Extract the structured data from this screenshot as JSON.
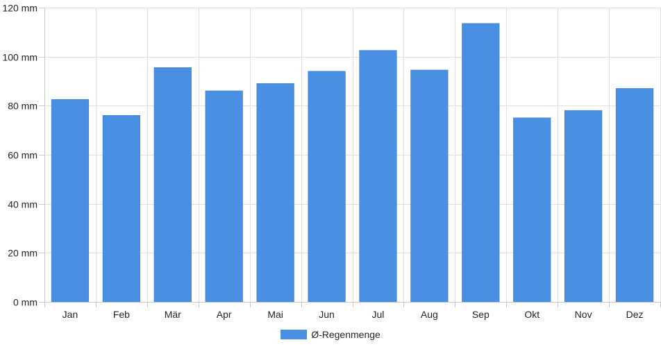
{
  "chart_data": {
    "type": "bar",
    "categories": [
      "Jan",
      "Feb",
      "Mär",
      "Apr",
      "Mai",
      "Jun",
      "Jul",
      "Aug",
      "Sep",
      "Okt",
      "Nov",
      "Dez"
    ],
    "series": [
      {
        "name": "Ø-Regenmenge",
        "values": [
          82.5,
          76,
          95.5,
          86,
          89,
          94,
          102.5,
          94.5,
          113.5,
          75,
          78,
          87
        ],
        "color": "#4a90e2"
      }
    ],
    "y_unit": "mm",
    "yticks": [
      0,
      20,
      40,
      60,
      80,
      100,
      120
    ],
    "ytick_labels": [
      "0 mm",
      "20 mm",
      "40 mm",
      "60 mm",
      "80 mm",
      "100 mm",
      "120 mm"
    ],
    "ylim": [
      0,
      120
    ],
    "grid": true,
    "legend_position": "bottom-center"
  }
}
